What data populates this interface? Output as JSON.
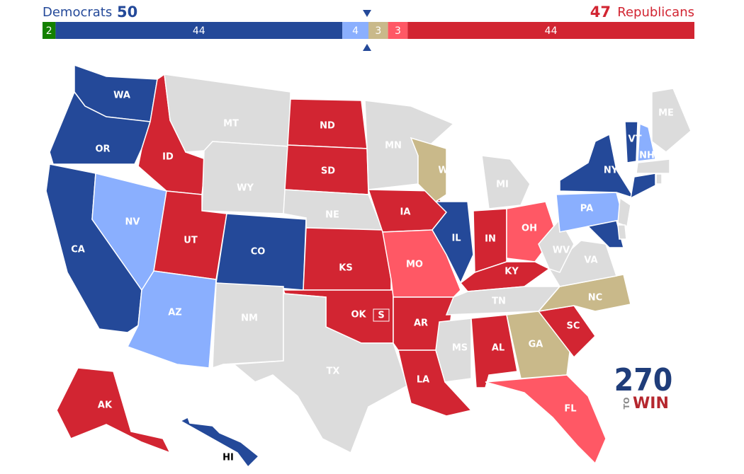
{
  "header": {
    "dem_label": "Democrats",
    "dem_total": 50,
    "rep_total": 47,
    "rep_label": "Republicans"
  },
  "bar": {
    "total": 100,
    "segments": [
      {
        "value": 2,
        "color": "#138000"
      },
      {
        "value": 44,
        "color": "#244999"
      },
      {
        "value": 4,
        "color": "#8aaffe"
      },
      {
        "value": 3,
        "color": "#c9b98a"
      },
      {
        "value": 3,
        "color": "#ff5865"
      },
      {
        "value": 44,
        "color": "#d22532"
      }
    ]
  },
  "states": [
    {
      "label": "WA",
      "color": "#244999"
    },
    {
      "label": "OR",
      "color": "#244999"
    },
    {
      "label": "CA",
      "color": "#244999"
    },
    {
      "label": "ID",
      "color": "#d22532"
    },
    {
      "label": "NV",
      "color": "#8aaffe"
    },
    {
      "label": "MT",
      "color": "#dcdcdc"
    },
    {
      "label": "WY",
      "color": "#dcdcdc"
    },
    {
      "label": "UT",
      "color": "#d22532"
    },
    {
      "label": "AZ",
      "color": "#8aaffe"
    },
    {
      "label": "CO",
      "color": "#244999"
    },
    {
      "label": "NM",
      "color": "#dcdcdc"
    },
    {
      "label": "ND",
      "color": "#d22532"
    },
    {
      "label": "SD",
      "color": "#d22532"
    },
    {
      "label": "NE",
      "color": "#dcdcdc"
    },
    {
      "label": "KS",
      "color": "#d22532"
    },
    {
      "label": "OK",
      "color": "#d22532"
    },
    {
      "label": "TX",
      "color": "#dcdcdc"
    },
    {
      "label": "MN",
      "color": "#dcdcdc"
    },
    {
      "label": "IA",
      "color": "#d22532"
    },
    {
      "label": "MO",
      "color": "#ff5865"
    },
    {
      "label": "AR",
      "color": "#d22532"
    },
    {
      "label": "LA",
      "color": "#d22532"
    },
    {
      "label": "WI",
      "color": "#c9b98a"
    },
    {
      "label": "IL",
      "color": "#244999"
    },
    {
      "label": "MI",
      "color": "#dcdcdc"
    },
    {
      "label": "IN",
      "color": "#d22532"
    },
    {
      "label": "OH",
      "color": "#ff5865"
    },
    {
      "label": "KY",
      "color": "#d22532"
    },
    {
      "label": "TN",
      "color": "#dcdcdc"
    },
    {
      "label": "MS",
      "color": "#dcdcdc"
    },
    {
      "label": "AL",
      "color": "#d22532"
    },
    {
      "label": "GA",
      "color": "#c9b98a"
    },
    {
      "label": "FL",
      "color": "#ff5865"
    },
    {
      "label": "SC",
      "color": "#d22532"
    },
    {
      "label": "NC",
      "color": "#c9b98a"
    },
    {
      "label": "VA",
      "color": "#dcdcdc"
    },
    {
      "label": "WV",
      "color": "#dcdcdc"
    },
    {
      "label": "PA",
      "color": "#8aaffe"
    },
    {
      "label": "NY",
      "color": "#244999"
    },
    {
      "label": "VT",
      "color": "#244999"
    },
    {
      "label": "NH",
      "color": "#8aaffe"
    },
    {
      "label": "ME",
      "color": "#dcdcdc"
    },
    {
      "label": "AK",
      "color": "#d22532"
    },
    {
      "label": "HI",
      "color": "#244999"
    },
    {
      "label": null,
      "color": "#244999"
    },
    {
      "label": null,
      "color": "#dcdcdc"
    },
    {
      "label": null,
      "color": "#244999"
    },
    {
      "label": null,
      "color": "#dcdcdc"
    },
    {
      "label": null,
      "color": "#dcdcdc"
    },
    {
      "label": null,
      "color": "#dcdcdc"
    }
  ],
  "special_marker": "S",
  "logo": {
    "number": "270",
    "to": "TO",
    "win": "WIN"
  }
}
